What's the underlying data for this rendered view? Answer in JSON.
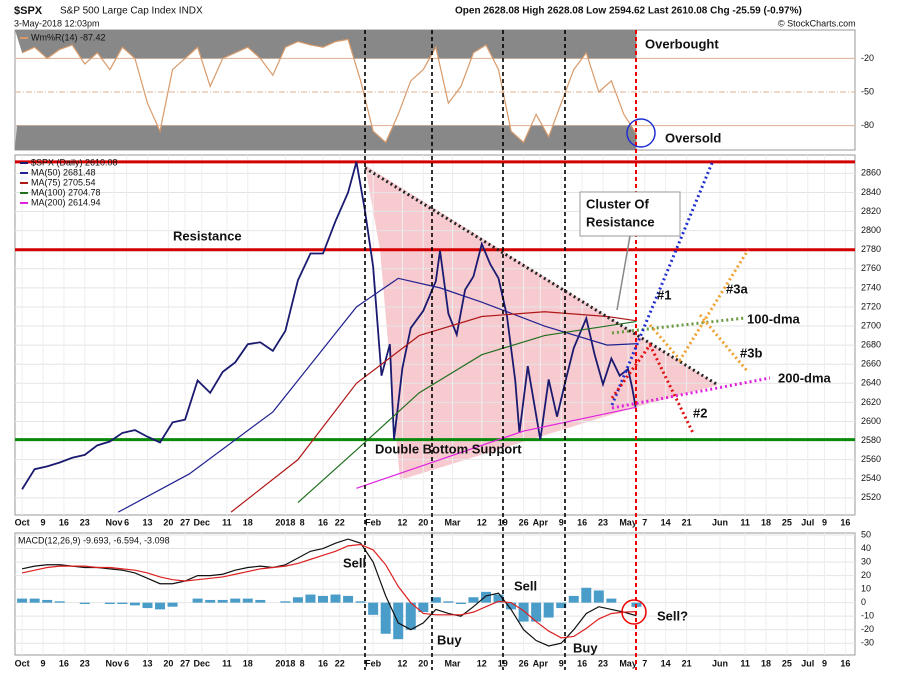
{
  "header": {
    "symbol": "$SPX",
    "name": "S&P 500 Large Cap Index INDX",
    "date": "3-May-2018 12:03pm",
    "quote": "Open 2628.08 High 2628.08 Low 2594.62 Last 2610.08 Chg -25.59 (-0.97%)",
    "credit": "© StockCharts.com"
  },
  "annotations": [
    "Overbought",
    "Oversold",
    "Resistance",
    "Cluster Of",
    "Resistance",
    "Double Bottom Support",
    "#1",
    "#2",
    "#3a",
    "#3b",
    "100-dma",
    "200-dma",
    "Sell",
    "Buy",
    "Sell",
    "Buy",
    "Sell?"
  ],
  "chart_data": [
    {
      "type": "line",
      "xlim": [
        -1.7,
        199.3
      ],
      "ylim": [
        -100,
        0
      ],
      "yticks": [
        -20,
        -50,
        -80
      ],
      "series": [
        {
          "name": "Wm%R(14) -87.42",
          "color": "#d89a6a",
          "x": [
            0,
            3,
            6,
            9,
            12,
            15,
            18,
            21,
            24,
            27,
            30,
            33,
            36,
            39,
            42,
            45,
            48,
            51,
            54,
            57,
            60,
            63,
            66,
            69,
            72,
            75,
            78,
            81,
            84,
            87,
            90,
            93,
            96,
            99,
            102,
            105,
            108,
            111,
            114,
            117,
            120,
            123,
            126,
            129,
            132,
            135,
            138,
            141,
            144,
            147
          ],
          "values": [
            -15,
            -10,
            -20,
            -12,
            -8,
            -25,
            -15,
            -30,
            -10,
            -20,
            -60,
            -85,
            -30,
            -20,
            -10,
            -45,
            -20,
            -15,
            -10,
            -20,
            -35,
            -10,
            -5,
            -8,
            -10,
            -5,
            -3,
            -40,
            -85,
            -95,
            -70,
            -40,
            -30,
            -10,
            -60,
            -45,
            -15,
            -8,
            -30,
            -85,
            -95,
            -70,
            -90,
            -60,
            -30,
            -15,
            -50,
            -40,
            -70,
            -87.42
          ]
        }
      ]
    },
    {
      "type": "line",
      "xlim": [
        -1.7,
        199.3
      ],
      "ylim": [
        2502,
        2874
      ],
      "yticks": [
        2520,
        2540,
        2560,
        2580,
        2600,
        2620,
        2640,
        2660,
        2680,
        2700,
        2720,
        2740,
        2760,
        2780,
        2800,
        2820,
        2840,
        2860
      ],
      "xticks": [
        {
          "value": 0,
          "label": "Oct"
        },
        {
          "value": 5,
          "label": "9"
        },
        {
          "value": 10,
          "label": "16"
        },
        {
          "value": 15,
          "label": "23"
        },
        {
          "value": 22,
          "label": "Nov"
        },
        {
          "value": 25,
          "label": "6"
        },
        {
          "value": 30,
          "label": "13"
        },
        {
          "value": 35,
          "label": "20"
        },
        {
          "value": 39,
          "label": "27"
        },
        {
          "value": 43,
          "label": "Dec"
        },
        {
          "value": 49,
          "label": "11"
        },
        {
          "value": 54,
          "label": "18"
        },
        {
          "value": 63,
          "label": "2018"
        },
        {
          "value": 67,
          "label": "8"
        },
        {
          "value": 72,
          "label": "16"
        },
        {
          "value": 76,
          "label": "22"
        },
        {
          "value": 84,
          "label": "Feb"
        },
        {
          "value": 91,
          "label": "12"
        },
        {
          "value": 96,
          "label": "20"
        },
        {
          "value": 103,
          "label": "Mar"
        },
        {
          "value": 110,
          "label": "12"
        },
        {
          "value": 115,
          "label": "19"
        },
        {
          "value": 120,
          "label": "26"
        },
        {
          "value": 124,
          "label": "Apr"
        },
        {
          "value": 129,
          "label": "9"
        },
        {
          "value": 134,
          "label": "16"
        },
        {
          "value": 139,
          "label": "23"
        },
        {
          "value": 145,
          "label": "May"
        },
        {
          "value": 149,
          "label": "7"
        },
        {
          "value": 154,
          "label": "14"
        },
        {
          "value": 159,
          "label": "21"
        },
        {
          "value": 167,
          "label": "Jun"
        },
        {
          "value": 173,
          "label": "11"
        },
        {
          "value": 178,
          "label": "18"
        },
        {
          "value": 183,
          "label": "25"
        },
        {
          "value": 188,
          "label": "Jul"
        },
        {
          "value": 192,
          "label": "9"
        },
        {
          "value": 197,
          "label": "16"
        }
      ],
      "levels": [
        {
          "value": 2872,
          "color": "#d40000"
        },
        {
          "value": 2780,
          "color": "#d40000"
        },
        {
          "value": 2581,
          "color": "#0a8a0a"
        }
      ],
      "series": [
        {
          "name": "$SPX (Daily) 2610.08",
          "color": "#1a1a70",
          "x": [
            0,
            3,
            6,
            9,
            12,
            15,
            18,
            21,
            24,
            27,
            30,
            33,
            36,
            39,
            42,
            45,
            48,
            51,
            54,
            57,
            60,
            63,
            66,
            69,
            72,
            75,
            78,
            80,
            82,
            84,
            86,
            88,
            89,
            91,
            93,
            96,
            99,
            100,
            102,
            104,
            106,
            108,
            110,
            112,
            114,
            116,
            118,
            119,
            121,
            124,
            126,
            128,
            130,
            132,
            135,
            137,
            139,
            141,
            143,
            145,
            146,
            147
          ],
          "values": [
            2529,
            2550,
            2553,
            2557,
            2562,
            2565,
            2575,
            2579,
            2588,
            2591,
            2584,
            2578,
            2599,
            2602,
            2643,
            2630,
            2652,
            2662,
            2681,
            2683,
            2674,
            2695,
            2748,
            2776,
            2776,
            2810,
            2840,
            2872,
            2822,
            2762,
            2648,
            2681,
            2581,
            2656,
            2698,
            2716,
            2747,
            2779,
            2713,
            2691,
            2738,
            2752,
            2786,
            2765,
            2750,
            2711,
            2643,
            2588,
            2658,
            2581,
            2644,
            2605,
            2642,
            2677,
            2708,
            2670,
            2639,
            2666,
            2648,
            2655,
            2635,
            2610
          ]
        },
        {
          "name": "MA(50) 2681.48",
          "color": "#202090",
          "x": [
            23,
            40,
            60,
            80,
            90,
            100,
            110,
            125,
            140,
            147
          ],
          "values": [
            2505,
            2545,
            2610,
            2720,
            2750,
            2740,
            2725,
            2700,
            2680,
            2681.48
          ]
        },
        {
          "name": "MA(75) 2705.54",
          "color": "#b01818",
          "x": [
            50,
            66,
            80,
            95,
            110,
            125,
            140,
            147
          ],
          "values": [
            2505,
            2560,
            2640,
            2690,
            2710,
            2715,
            2710,
            2705.54
          ]
        },
        {
          "name": "MA(100) 2704.78",
          "color": "#207020",
          "x": [
            66,
            80,
            95,
            110,
            125,
            147
          ],
          "values": [
            2515,
            2570,
            2630,
            2670,
            2690,
            2704.78
          ]
        },
        {
          "name": "MA(200) 2614.94",
          "color": "#e020e0",
          "x": [
            80,
            100,
            120,
            147
          ],
          "values": [
            2530,
            2560,
            2590,
            2614.94
          ]
        }
      ]
    },
    {
      "type": "line",
      "xlim": [
        -1.7,
        199.3
      ],
      "ylim": [
        -38.7,
        51.5
      ],
      "yticks": [
        50,
        40,
        30,
        20,
        10,
        0,
        -10,
        -20,
        -30
      ],
      "xticks": [
        {
          "value": 0,
          "label": "Oct"
        },
        {
          "value": 5,
          "label": "9"
        },
        {
          "value": 10,
          "label": "16"
        },
        {
          "value": 15,
          "label": "23"
        },
        {
          "value": 22,
          "label": "Nov"
        },
        {
          "value": 25,
          "label": "6"
        },
        {
          "value": 30,
          "label": "13"
        },
        {
          "value": 35,
          "label": "20"
        },
        {
          "value": 39,
          "label": "27"
        },
        {
          "value": 43,
          "label": "Dec"
        },
        {
          "value": 49,
          "label": "11"
        },
        {
          "value": 54,
          "label": "18"
        },
        {
          "value": 63,
          "label": "2018"
        },
        {
          "value": 67,
          "label": "8"
        },
        {
          "value": 72,
          "label": "16"
        },
        {
          "value": 76,
          "label": "22"
        },
        {
          "value": 84,
          "label": "Feb"
        },
        {
          "value": 91,
          "label": "12"
        },
        {
          "value": 96,
          "label": "20"
        },
        {
          "value": 103,
          "label": "Mar"
        },
        {
          "value": 110,
          "label": "12"
        },
        {
          "value": 115,
          "label": "19"
        },
        {
          "value": 120,
          "label": "26"
        },
        {
          "value": 124,
          "label": "Apr"
        },
        {
          "value": 129,
          "label": "9"
        },
        {
          "value": 134,
          "label": "16"
        },
        {
          "value": 139,
          "label": "23"
        },
        {
          "value": 145,
          "label": "May"
        },
        {
          "value": 149,
          "label": "7"
        },
        {
          "value": 154,
          "label": "14"
        },
        {
          "value": 159,
          "label": "21"
        },
        {
          "value": 167,
          "label": "Jun"
        },
        {
          "value": 173,
          "label": "11"
        },
        {
          "value": 178,
          "label": "18"
        },
        {
          "value": 183,
          "label": "25"
        },
        {
          "value": 188,
          "label": "Jul"
        },
        {
          "value": 192,
          "label": "9"
        },
        {
          "value": 197,
          "label": "16"
        }
      ],
      "title": "MACD(12,26,9) -9.693, -6.594, -3.098",
      "series": [
        {
          "type": "bar",
          "color": "#4b9dc9",
          "x": [
            0,
            3,
            6,
            9,
            12,
            15,
            18,
            21,
            24,
            27,
            30,
            33,
            36,
            39,
            42,
            45,
            48,
            51,
            54,
            57,
            60,
            63,
            66,
            69,
            72,
            75,
            78,
            81,
            84,
            87,
            90,
            93,
            96,
            99,
            102,
            105,
            108,
            111,
            114,
            117,
            120,
            123,
            126,
            129,
            132,
            135,
            138,
            141,
            144,
            147
          ],
          "values": [
            3,
            3,
            2,
            1,
            0,
            -1,
            0,
            -1,
            -1,
            -2,
            -4,
            -5,
            -3,
            0,
            3,
            2,
            2,
            3,
            3,
            2,
            0,
            1,
            4,
            6,
            5,
            6,
            5,
            1,
            -9,
            -23,
            -27,
            -20,
            -7,
            4,
            1,
            -1,
            4,
            8,
            6,
            -5,
            -14,
            -14,
            -11,
            -4,
            5,
            11,
            9,
            3,
            0,
            -3.098
          ]
        },
        {
          "type": "line",
          "color": "#111111",
          "x": [
            0,
            3,
            6,
            9,
            12,
            15,
            18,
            21,
            24,
            27,
            30,
            33,
            36,
            39,
            42,
            45,
            48,
            51,
            54,
            57,
            60,
            63,
            66,
            69,
            72,
            75,
            78,
            81,
            84,
            87,
            90,
            93,
            96,
            99,
            102,
            105,
            108,
            111,
            114,
            117,
            120,
            123,
            126,
            129,
            132,
            135,
            138,
            141,
            144,
            147
          ],
          "values": [
            25,
            27,
            28,
            28,
            27,
            26,
            26,
            25,
            24,
            22,
            18,
            14,
            14,
            16,
            20,
            20,
            21,
            24,
            26,
            27,
            26,
            28,
            33,
            38,
            40,
            44,
            47,
            44,
            30,
            5,
            -15,
            -20,
            -15,
            -5,
            -8,
            -10,
            -3,
            5,
            7,
            -5,
            -20,
            -28,
            -32,
            -30,
            -20,
            -8,
            -3,
            -5,
            -7,
            -9.693
          ]
        },
        {
          "type": "line",
          "color": "#dd2020",
          "x": [
            0,
            3,
            6,
            9,
            12,
            15,
            18,
            21,
            24,
            27,
            30,
            33,
            36,
            39,
            42,
            45,
            48,
            51,
            54,
            57,
            60,
            63,
            66,
            69,
            72,
            75,
            78,
            81,
            84,
            87,
            90,
            93,
            96,
            99,
            102,
            105,
            108,
            111,
            114,
            117,
            120,
            123,
            126,
            129,
            132,
            135,
            138,
            141,
            144,
            147
          ],
          "values": [
            22,
            24,
            26,
            27,
            27,
            27,
            26,
            26,
            25,
            24,
            22,
            19,
            17,
            16,
            17,
            18,
            19,
            21,
            23,
            25,
            26,
            27,
            29,
            32,
            35,
            38,
            42,
            43,
            39,
            28,
            12,
            0,
            -8,
            -9,
            -9,
            -9,
            -7,
            -3,
            1,
            0,
            -6,
            -14,
            -21,
            -26,
            -25,
            -19,
            -12,
            -8,
            -7,
            -6.594
          ]
        }
      ]
    }
  ]
}
